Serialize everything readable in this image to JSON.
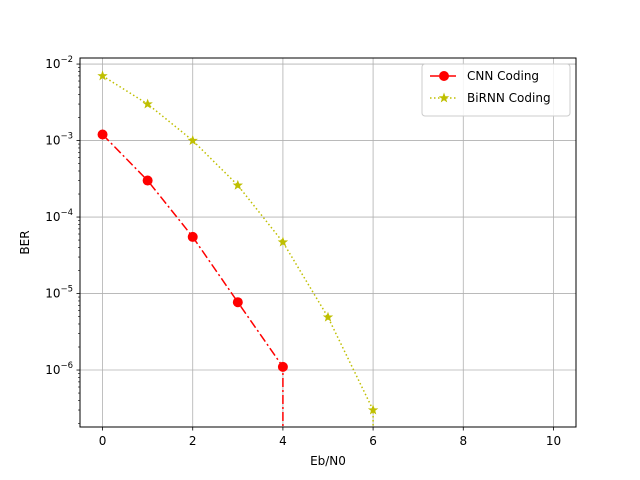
{
  "chart_data": {
    "type": "line",
    "title": "",
    "xlabel": "Eb/N0",
    "ylabel": "BER",
    "xlim": [
      -0.5,
      10.5
    ],
    "ylim": [
      1.8e-07,
      0.012
    ],
    "yscale": "log",
    "grid": true,
    "legend_position": "top-right",
    "x_ticks": [
      0,
      2,
      4,
      6,
      8,
      10
    ],
    "x_tick_labels": [
      "0",
      "2",
      "4",
      "6",
      "8",
      "10"
    ],
    "y_ticks": [
      1e-06,
      1e-05,
      0.0001,
      0.001,
      0.01
    ],
    "y_tick_labels": [
      {
        "base": "10",
        "exp": "−6"
      },
      {
        "base": "10",
        "exp": "−5"
      },
      {
        "base": "10",
        "exp": "−4"
      },
      {
        "base": "10",
        "exp": "−3"
      },
      {
        "base": "10",
        "exp": "−2"
      }
    ],
    "series": [
      {
        "name": "CNN Coding",
        "color": "#ff0000",
        "line_style": "dashdot",
        "marker": "circle",
        "x": [
          0,
          1,
          2,
          3,
          4,
          5,
          6,
          7,
          8,
          9,
          10
        ],
        "y": [
          0.0012,
          0.0003,
          5.5e-05,
          7.7e-06,
          1.1e-06,
          0,
          0,
          0,
          0,
          0,
          0
        ]
      },
      {
        "name": "BiRNN Coding",
        "color": "#bfbf00",
        "line_style": "dotted",
        "marker": "star",
        "x": [
          0,
          1,
          2,
          3,
          4,
          5,
          6,
          7,
          8,
          9,
          10
        ],
        "y": [
          0.007,
          0.003,
          0.001,
          0.00026,
          4.7e-05,
          4.9e-06,
          3e-07,
          0,
          0,
          0,
          0
        ]
      }
    ]
  }
}
